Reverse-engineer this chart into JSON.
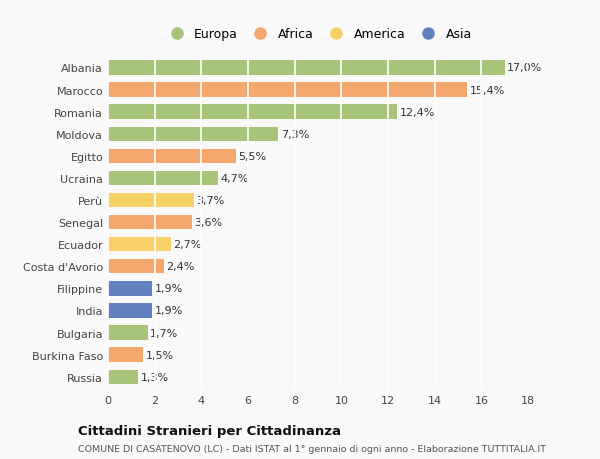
{
  "countries": [
    "Albania",
    "Marocco",
    "Romania",
    "Moldova",
    "Egitto",
    "Ucraina",
    "Perù",
    "Senegal",
    "Ecuador",
    "Costa d'Avorio",
    "Filippine",
    "India",
    "Bulgaria",
    "Burkina Faso",
    "Russia"
  ],
  "values": [
    17.0,
    15.4,
    12.4,
    7.3,
    5.5,
    4.7,
    3.7,
    3.6,
    2.7,
    2.4,
    1.9,
    1.9,
    1.7,
    1.5,
    1.3
  ],
  "categories": [
    "Europa",
    "Africa",
    "Europa",
    "Europa",
    "Africa",
    "Europa",
    "America",
    "Africa",
    "America",
    "Africa",
    "Asia",
    "Asia",
    "Europa",
    "Africa",
    "Europa"
  ],
  "colors": {
    "Europa": "#a8c47a",
    "Africa": "#f4a86e",
    "America": "#f7d068",
    "Asia": "#6080c0"
  },
  "legend_order": [
    "Europa",
    "Africa",
    "America",
    "Asia"
  ],
  "xlim": [
    0,
    18
  ],
  "xticks": [
    0,
    2,
    4,
    6,
    8,
    10,
    12,
    14,
    16,
    18
  ],
  "title": "Cittadini Stranieri per Cittadinanza",
  "subtitle": "COMUNE DI CASATENOVO (LC) - Dati ISTAT al 1° gennaio di ogni anno - Elaborazione TUTTITALIA.IT",
  "bar_height": 0.65,
  "background_color": "#f9f9f9",
  "grid_color": "#ffffff",
  "label_fontsize": 8,
  "tick_fontsize": 8,
  "legend_fontsize": 9
}
